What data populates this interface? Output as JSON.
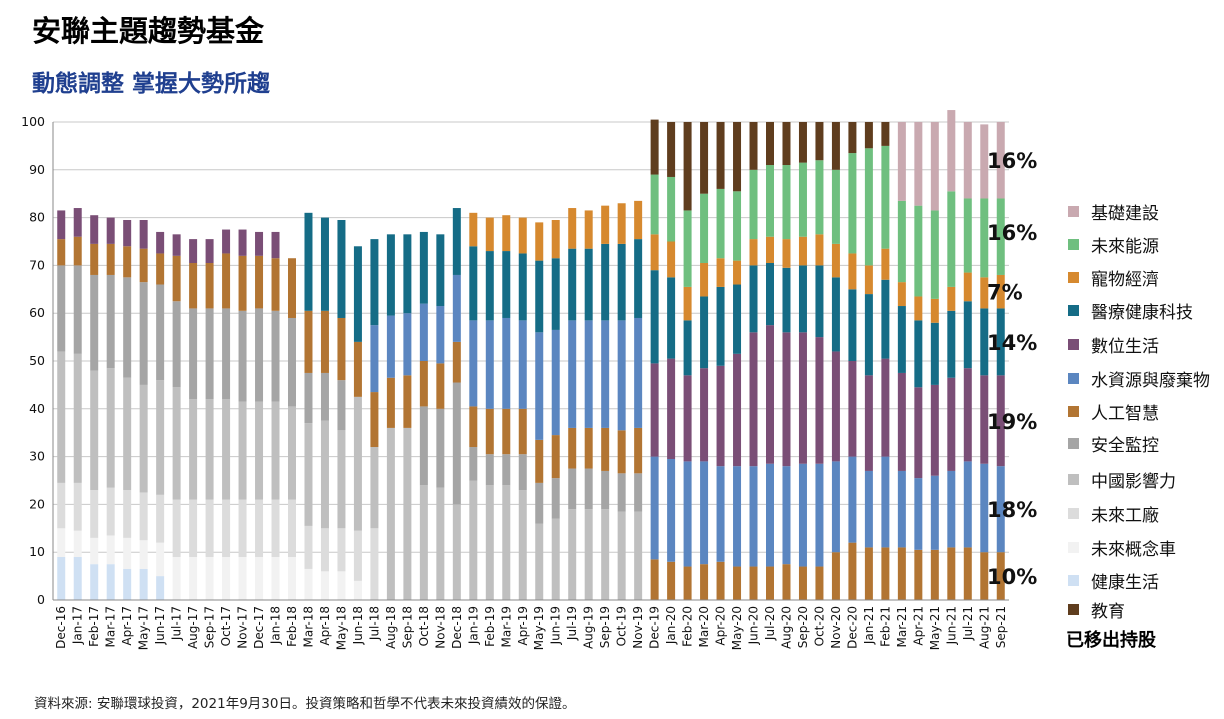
{
  "title": "安聯主題趨勢基金",
  "subtitle": "動態調整  掌握大勢所趨",
  "source": "資料來源: 安聯環球投資，2021年9月30日。投資策略和哲學不代表未來投資績效的保證。",
  "removed_note": "已移出持股",
  "colors": {
    "健康生活": "#cfe0f3",
    "未來概念車": "#f2f2f2",
    "未來工廠": "#dcdcdc",
    "中國影響力": "#bfbfbf",
    "安全監控": "#a5a5a5",
    "人工智慧": "#b27533",
    "水資源與廢棄物": "#5b86c0",
    "數位生活": "#7a4e76",
    "醫療健康科技": "#156c86",
    "寵物經濟": "#d6892f",
    "未來能源": "#6fbf7f",
    "基礎建設": "#c9a9b0",
    "教育": "#5f3d1e"
  },
  "legend": [
    {
      "label": "基礎建設",
      "color": "#c9a9b0"
    },
    {
      "label": "未來能源",
      "color": "#6fbf7f"
    },
    {
      "label": "寵物經濟",
      "color": "#d6892f"
    },
    {
      "label": "醫療健康科技",
      "color": "#156c86"
    },
    {
      "label": "數位生活",
      "color": "#7a4e76"
    },
    {
      "label": "水資源與廢棄物",
      "color": "#5b86c0"
    },
    {
      "label": "人工智慧",
      "color": "#b27533"
    },
    {
      "label": "安全監控",
      "color": "#a5a5a5"
    },
    {
      "label": "中國影響力",
      "color": "#bfbfbf"
    },
    {
      "label": "未來工廠",
      "color": "#dcdcdc"
    },
    {
      "label": "未來概念車",
      "color": "#f2f2f2"
    },
    {
      "label": "健康生活",
      "color": "#cfe0f3"
    },
    {
      "label": "教育",
      "color": "#5f3d1e"
    }
  ],
  "chart_data": {
    "type": "bar",
    "stacked": true,
    "ylim": [
      0,
      100
    ],
    "yticks": [
      0,
      10,
      20,
      30,
      40,
      50,
      60,
      70,
      80,
      90,
      100
    ],
    "grid": true,
    "legend_position": "right",
    "categories": [
      "Dec-16",
      "Jan-17",
      "Feb-17",
      "Mar-17",
      "Apr-17",
      "May-17",
      "Jun-17",
      "Jul-17",
      "Aug-17",
      "Sep-17",
      "Oct-17",
      "Nov-17",
      "Dec-17",
      "Jan-18",
      "Feb-18",
      "Mar-18",
      "Apr-18",
      "May-18",
      "Jun-18",
      "Jul-18",
      "Aug-18",
      "Sep-18",
      "Oct-18",
      "Nov-18",
      "Dec-18",
      "Jan-19",
      "Feb-19",
      "Mar-19",
      "Apr-19",
      "May-19",
      "Jun-19",
      "Jul-19",
      "Aug-19",
      "Sep-19",
      "Oct-19",
      "Nov-19",
      "Dec-19",
      "Jan-20",
      "Feb-20",
      "Mar-20",
      "Apr-20",
      "May-20",
      "Jun-20",
      "Jul-20",
      "Aug-20",
      "Sep-20",
      "Oct-20",
      "Nov-20",
      "Dec-20",
      "Jan-21",
      "Feb-21",
      "Mar-21",
      "Apr-21",
      "May-21",
      "Jun-21",
      "Jul-21",
      "Aug-21",
      "Sep-21"
    ],
    "series": [
      {
        "name": "健康生活",
        "values": [
          9,
          9,
          7.5,
          7.5,
          6.5,
          6.5,
          5,
          0,
          0,
          0,
          0,
          0,
          0,
          0,
          0,
          0,
          0,
          0,
          0,
          0,
          0,
          0,
          0,
          0,
          0,
          0,
          0,
          0,
          0,
          0,
          0,
          0,
          0,
          0,
          0,
          0,
          0,
          0,
          0,
          0,
          0,
          0,
          0,
          0,
          0,
          0,
          0,
          0,
          0,
          0,
          0,
          0,
          0,
          0,
          0,
          0,
          0,
          0
        ]
      },
      {
        "name": "未來概念車",
        "values": [
          6,
          5.5,
          5.5,
          6,
          6.5,
          6,
          7,
          9,
          9,
          9,
          9,
          9,
          9,
          9,
          9,
          6.5,
          6,
          6,
          4,
          0,
          0,
          0,
          0,
          0,
          0,
          0,
          0,
          0,
          0,
          0,
          0,
          0,
          0,
          0,
          0,
          0,
          0,
          0,
          0,
          0,
          0,
          0,
          0,
          0,
          0,
          0,
          0,
          0,
          0,
          0,
          0,
          0,
          0,
          0,
          0,
          0,
          0,
          0
        ]
      },
      {
        "name": "未來工廠",
        "values": [
          9.5,
          10,
          10,
          10,
          10,
          10,
          10,
          12,
          12,
          12,
          12,
          12,
          12,
          12,
          12,
          9,
          9,
          9,
          10.5,
          15,
          0,
          0,
          0,
          0,
          0,
          0,
          0,
          0,
          0,
          0,
          0,
          0,
          0,
          0,
          0,
          0,
          0,
          0,
          0,
          0,
          0,
          0,
          0,
          0,
          0,
          0,
          0,
          0,
          0,
          0,
          0,
          0,
          0,
          0,
          0,
          0,
          0,
          0
        ]
      },
      {
        "name": "中國影響力",
        "values": [
          27.5,
          27,
          25,
          25,
          23.5,
          22.5,
          24,
          23.5,
          21,
          21,
          21,
          20.5,
          20.5,
          20.5,
          19.5,
          21.5,
          22.5,
          20.5,
          28,
          17,
          36,
          36,
          24,
          23.5,
          20,
          25,
          24,
          24,
          23,
          16,
          17,
          19,
          19,
          19,
          18.5,
          18.5,
          0,
          0,
          0,
          0,
          0,
          0,
          0,
          0,
          0,
          0,
          0,
          0,
          0,
          0,
          0,
          0,
          0,
          0,
          0,
          0,
          0,
          0
        ]
      },
      {
        "name": "安全監控",
        "values": [
          18,
          18.5,
          20,
          19.5,
          21,
          21.5,
          20,
          18,
          19,
          19,
          19,
          19,
          19.5,
          19,
          18.5,
          10.5,
          10,
          10.5,
          0,
          0,
          0,
          0,
          16.5,
          16.5,
          25.5,
          7,
          6.5,
          6.5,
          7.5,
          8.5,
          8.5,
          8.5,
          8.5,
          8,
          8,
          8,
          0,
          0,
          0,
          0,
          0,
          0,
          0,
          0,
          0,
          0,
          0,
          0,
          0,
          0,
          0,
          0,
          0,
          0,
          0,
          0,
          0,
          0
        ]
      },
      {
        "name": "人工智慧",
        "values": [
          5.5,
          6,
          6.5,
          6.5,
          6.5,
          7,
          6.5,
          9.5,
          9.5,
          9.5,
          11.5,
          11.5,
          11,
          11,
          12.5,
          13,
          13,
          13,
          11.5,
          11.5,
          10.5,
          11,
          9.5,
          9.5,
          8.5,
          8.5,
          9.5,
          9.5,
          9.5,
          9,
          9,
          8.5,
          8.5,
          9,
          9,
          9.5,
          8.5,
          8,
          7,
          7.5,
          8,
          7,
          7,
          7,
          7.5,
          7,
          7,
          10,
          12,
          11,
          11,
          11,
          10.5,
          10.5,
          11,
          11,
          10,
          10
        ]
      },
      {
        "name": "水資源與廢棄物",
        "values": [
          0,
          0,
          0,
          0,
          0,
          0,
          0,
          0,
          0,
          0,
          0,
          0,
          0,
          0,
          0,
          0,
          0,
          0,
          0,
          14,
          13,
          13,
          12,
          12,
          14,
          18,
          18.5,
          19,
          18.5,
          22.5,
          22,
          22.5,
          22.5,
          22.5,
          23,
          23,
          21.5,
          21.5,
          22,
          21.5,
          20,
          21,
          21,
          21.5,
          20.5,
          21.5,
          21.5,
          19,
          18,
          16,
          19,
          16,
          15,
          15.5,
          16,
          18,
          18.5,
          18
        ]
      },
      {
        "name": "數位生活",
        "values": [
          6,
          6,
          6,
          5.5,
          5.5,
          6,
          4.5,
          4.5,
          5,
          5,
          5,
          5.5,
          5,
          5.5,
          0,
          0,
          0,
          0,
          0,
          0,
          0,
          0,
          0,
          0,
          0,
          0,
          0,
          0,
          0,
          0,
          0,
          0,
          0,
          0,
          0,
          0,
          19.5,
          21,
          18,
          19.5,
          21,
          23.5,
          28,
          29,
          28,
          27.5,
          26.5,
          23,
          20,
          20,
          20.5,
          20.5,
          19,
          19,
          19.5,
          19.5,
          18.5,
          19
        ]
      },
      {
        "name": "醫療健康科技",
        "values": [
          0,
          0,
          0,
          0,
          0,
          0,
          0,
          0,
          0,
          0,
          0,
          0,
          0,
          0,
          0,
          20.5,
          19.5,
          20.5,
          20,
          18,
          17,
          16.5,
          15,
          15,
          14,
          15.5,
          14.5,
          14,
          14,
          15,
          15,
          15,
          15,
          16,
          16,
          16.5,
          19.5,
          17,
          11.5,
          15,
          16.5,
          14.5,
          14,
          13,
          13.5,
          14,
          15,
          15.5,
          15,
          17,
          16.5,
          14,
          14,
          13,
          14,
          14,
          14,
          14
        ]
      },
      {
        "name": "寵物經濟",
        "values": [
          0,
          0,
          0,
          0,
          0,
          0,
          0,
          0,
          0,
          0,
          0,
          0,
          0,
          0,
          0,
          0,
          0,
          0,
          0,
          0,
          0,
          0,
          0,
          0,
          0,
          7,
          7,
          7.5,
          7.5,
          8,
          8,
          8.5,
          8,
          8,
          8.5,
          8,
          7.5,
          7.5,
          7,
          7,
          6,
          5,
          5.5,
          5.5,
          6,
          6,
          6.5,
          7,
          7.5,
          6,
          6.5,
          5,
          5,
          5,
          5,
          6,
          6.5,
          7
        ]
      },
      {
        "name": "未來能源",
        "values": [
          0,
          0,
          0,
          0,
          0,
          0,
          0,
          0,
          0,
          0,
          0,
          0,
          0,
          0,
          0,
          0,
          0,
          0,
          0,
          0,
          0,
          0,
          0,
          0,
          0,
          0,
          0,
          0,
          0,
          0,
          0,
          0,
          0,
          0,
          0,
          0,
          12.5,
          13.5,
          16,
          14.5,
          14.5,
          14.5,
          14.5,
          15,
          15.5,
          15.5,
          15.5,
          15.5,
          21,
          24.5,
          21.5,
          17,
          19,
          18.5,
          20,
          15.5,
          16.5,
          16
        ]
      },
      {
        "name": "基礎建設",
        "values": [
          0,
          0,
          0,
          0,
          0,
          0,
          0,
          0,
          0,
          0,
          0,
          0,
          0,
          0,
          0,
          0,
          0,
          0,
          0,
          0,
          0,
          0,
          0,
          0,
          0,
          0,
          0,
          0,
          0,
          0,
          0,
          0,
          0,
          0,
          0,
          0,
          0,
          0,
          0,
          0,
          0,
          0,
          0,
          0,
          0,
          0,
          0,
          0,
          0,
          0,
          0,
          16.5,
          17.5,
          18.5,
          17,
          16,
          15.5,
          16
        ]
      },
      {
        "name": "教育",
        "values": [
          0,
          0,
          0,
          0,
          0,
          0,
          0,
          0,
          0,
          0,
          0,
          0,
          0,
          0,
          0,
          0,
          0,
          0,
          0,
          0,
          0,
          0,
          0,
          0,
          0,
          0,
          0,
          0,
          0,
          0,
          0,
          0,
          0,
          0,
          0,
          0,
          11.5,
          11.5,
          18.5,
          15,
          14,
          14.5,
          10,
          9,
          9,
          8.5,
          8,
          10,
          6.5,
          5.5,
          5,
          0,
          0,
          0,
          0,
          0,
          0,
          0
        ]
      }
    ],
    "annotations": [
      {
        "text": "16%",
        "y": 92
      },
      {
        "text": "16%",
        "y": 77
      },
      {
        "text": "7%",
        "y": 64.5
      },
      {
        "text": "14%",
        "y": 54
      },
      {
        "text": "19%",
        "y": 37.5
      },
      {
        "text": "18%",
        "y": 19
      },
      {
        "text": "10%",
        "y": 5
      }
    ]
  }
}
